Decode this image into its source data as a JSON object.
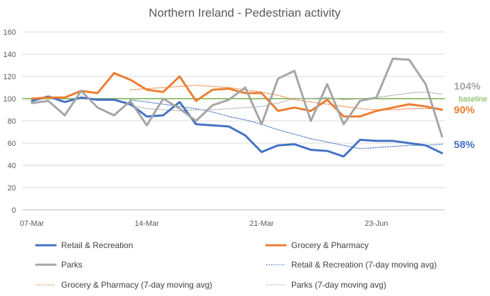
{
  "chart_data": {
    "type": "line",
    "title": "Northern Ireland - Pedestrian activity",
    "xlabel": "",
    "ylabel": "",
    "ylim": [
      0,
      160
    ],
    "yticks": [
      0,
      20,
      40,
      60,
      80,
      100,
      120,
      140,
      160
    ],
    "x_tick_labels": [
      {
        "label": "07-Mar",
        "index": 0
      },
      {
        "label": "14-Mar",
        "index": 7
      },
      {
        "label": "21-Mar",
        "index": 14
      },
      {
        "label": "23-Jun",
        "index": 21
      }
    ],
    "n_points": 26,
    "baseline": {
      "value": 100,
      "label": "baseline",
      "color": "#70AD47"
    },
    "grid": true,
    "legend_position": "bottom",
    "series": [
      {
        "key": "retail",
        "name": "Retail & Recreation",
        "color": "#4472C4",
        "style": "solid",
        "end_label": "58%",
        "values": [
          98,
          102,
          97,
          101,
          99,
          99,
          95,
          84,
          85,
          97,
          77,
          76,
          75,
          67,
          52,
          58,
          59,
          54,
          53,
          48,
          63,
          62,
          62,
          60,
          58,
          51
        ]
      },
      {
        "key": "grocery",
        "name": "Grocery & Pharmacy",
        "color": "#ED7D31",
        "style": "solid",
        "end_label": "90%",
        "values": [
          100,
          101,
          101,
          107,
          105,
          123,
          117,
          108,
          106,
          120,
          98,
          108,
          109,
          105,
          105,
          89,
          92,
          89,
          99,
          84,
          84,
          89,
          92,
          95,
          93,
          90
        ]
      },
      {
        "key": "parks",
        "name": "Parks",
        "color": "#A5A5A5",
        "style": "solid",
        "end_label": "104%",
        "values": [
          96,
          98,
          85,
          107,
          92,
          85,
          98,
          76,
          100,
          91,
          80,
          94,
          99,
          110,
          77,
          118,
          125,
          80,
          113,
          77,
          98,
          101,
          136,
          135,
          113,
          66
        ]
      },
      {
        "key": "retail_ma",
        "name": "Retail & Recreation (7-day moving avg)",
        "color": "#4472C4",
        "style": "dotted",
        "values": [
          null,
          null,
          null,
          null,
          null,
          null,
          99,
          97,
          95,
          93,
          91,
          88,
          84,
          81,
          77,
          72,
          68,
          64,
          61,
          58,
          55,
          56,
          57,
          58,
          58,
          59
        ]
      },
      {
        "key": "grocery_ma",
        "name": "Grocery & Pharmacy (7-day moving avg)",
        "color": "#ED7D31",
        "style": "dotted",
        "values": [
          null,
          null,
          null,
          null,
          null,
          null,
          108,
          109,
          110,
          111,
          112,
          111,
          110,
          108,
          106,
          103,
          99,
          97,
          95,
          93,
          91,
          90,
          90,
          91,
          91,
          91
        ]
      },
      {
        "key": "parks_ma",
        "name": "Parks (7-day moving avg)",
        "color": "#A5A5A5",
        "style": "dotted",
        "values": [
          null,
          null,
          null,
          null,
          null,
          null,
          94,
          91,
          90,
          89,
          90,
          90,
          91,
          92,
          93,
          96,
          100,
          100,
          101,
          99,
          100,
          101,
          103,
          105,
          106,
          104
        ]
      }
    ]
  }
}
